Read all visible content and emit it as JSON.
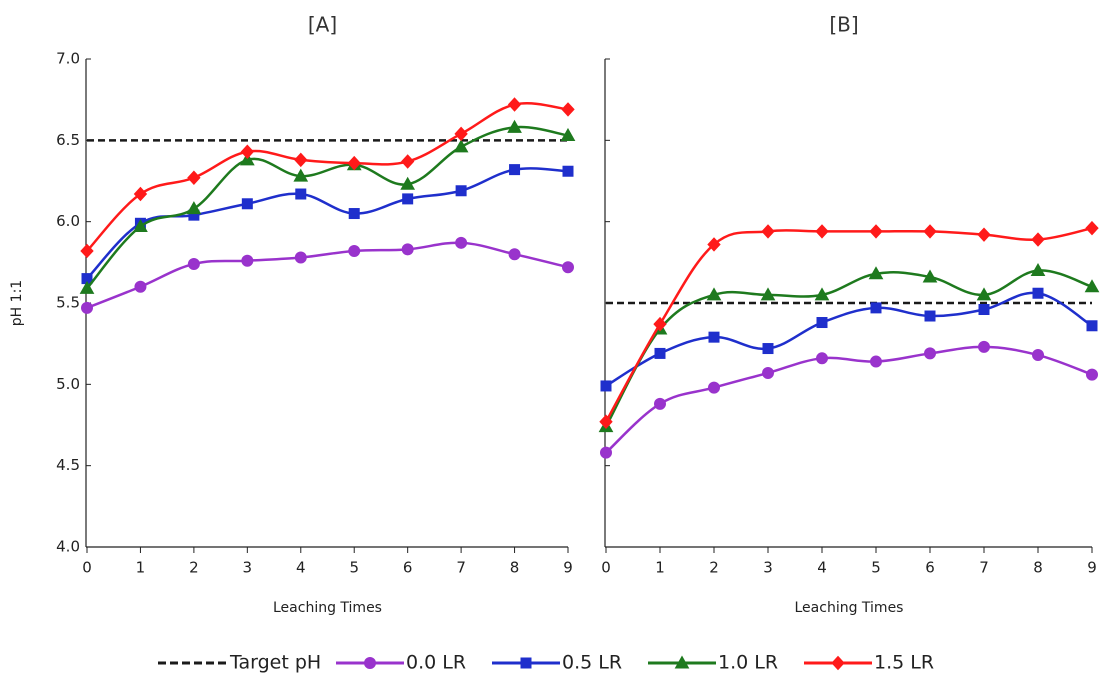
{
  "chart_data": [
    {
      "type": "line",
      "title": "[A]",
      "x_label": "Leaching Times",
      "y_label": "pH 1:1",
      "x": [
        0,
        1,
        2,
        3,
        4,
        5,
        6,
        7,
        8,
        9
      ],
      "xlim": [
        0,
        9
      ],
      "xticks": [
        0,
        1,
        2,
        3,
        4,
        5,
        6,
        7,
        8,
        9
      ],
      "ylim": [
        4,
        7
      ],
      "yticks": [
        {
          "value": 4,
          "label": "4.0"
        },
        {
          "value": 4.5,
          "label": "4.5"
        },
        {
          "value": 5,
          "label": "5.0"
        },
        {
          "value": 5.5,
          "label": "5.5"
        },
        {
          "value": 6,
          "label": "6.0"
        },
        {
          "value": 6.5,
          "label": "6.5"
        },
        {
          "value": 7,
          "label": "7.0"
        }
      ],
      "series": [
        {
          "name": "Target pH",
          "color": "#1a1a1a",
          "dash": true,
          "values": [
            6.5,
            6.5,
            6.5,
            6.5,
            6.5,
            6.5,
            6.5,
            6.5,
            6.5,
            6.5
          ]
        },
        {
          "name": "0.0 LR",
          "color": "#9933cc",
          "marker": "circle",
          "values": [
            5.47,
            5.6,
            5.74,
            5.76,
            5.78,
            5.82,
            5.83,
            5.87,
            5.8,
            5.72
          ]
        },
        {
          "name": "0.5 LR",
          "color": "#1f2fcc",
          "marker": "square",
          "values": [
            5.65,
            5.99,
            6.04,
            6.11,
            6.17,
            6.05,
            6.14,
            6.19,
            6.32,
            6.31
          ]
        },
        {
          "name": "1.0 LR",
          "color": "#1e7a1e",
          "marker": "triangle",
          "values": [
            5.59,
            5.97,
            6.08,
            6.38,
            6.28,
            6.35,
            6.23,
            6.46,
            6.58,
            6.53
          ]
        },
        {
          "name": "1.5 LR",
          "color": "#ff1a1a",
          "marker": "diamond",
          "values": [
            5.82,
            6.17,
            6.27,
            6.43,
            6.38,
            6.36,
            6.37,
            6.54,
            6.72,
            6.69
          ]
        }
      ]
    },
    {
      "type": "line",
      "title": "[B]",
      "x_label": "Leaching Times",
      "x": [
        0,
        1,
        2,
        3,
        4,
        5,
        6,
        7,
        8,
        9
      ],
      "xlim": [
        0,
        9
      ],
      "xticks": [
        0,
        1,
        2,
        3,
        4,
        5,
        6,
        7,
        8,
        9
      ],
      "ylim": [
        4,
        7
      ],
      "yticks": [
        4,
        4.5,
        5,
        5.5,
        6,
        6.5,
        7
      ],
      "ytick_labels": false,
      "series": [
        {
          "color": "#1a1a1a",
          "dash": true,
          "values": [
            5.5,
            5.5,
            5.5,
            5.5,
            5.5,
            5.5,
            5.5,
            5.5,
            5.5,
            5.5
          ]
        },
        {
          "color": "#9933cc",
          "marker": "circle",
          "values": [
            4.58,
            4.88,
            4.98,
            5.07,
            5.16,
            5.14,
            5.19,
            5.23,
            5.18,
            5.06
          ]
        },
        {
          "color": "#1f2fcc",
          "marker": "square",
          "values": [
            4.99,
            5.19,
            5.29,
            5.22,
            5.38,
            5.47,
            5.42,
            5.46,
            5.56,
            5.36
          ]
        },
        {
          "color": "#1e7a1e",
          "marker": "triangle",
          "values": [
            4.74,
            5.34,
            5.55,
            5.55,
            5.55,
            5.68,
            5.66,
            5.55,
            5.7,
            5.6
          ]
        },
        {
          "color": "#ff1a1a",
          "marker": "diamond",
          "values": [
            4.77,
            5.37,
            5.86,
            5.94,
            5.94,
            5.94,
            5.94,
            5.92,
            5.89,
            5.96
          ]
        }
      ]
    }
  ]
}
